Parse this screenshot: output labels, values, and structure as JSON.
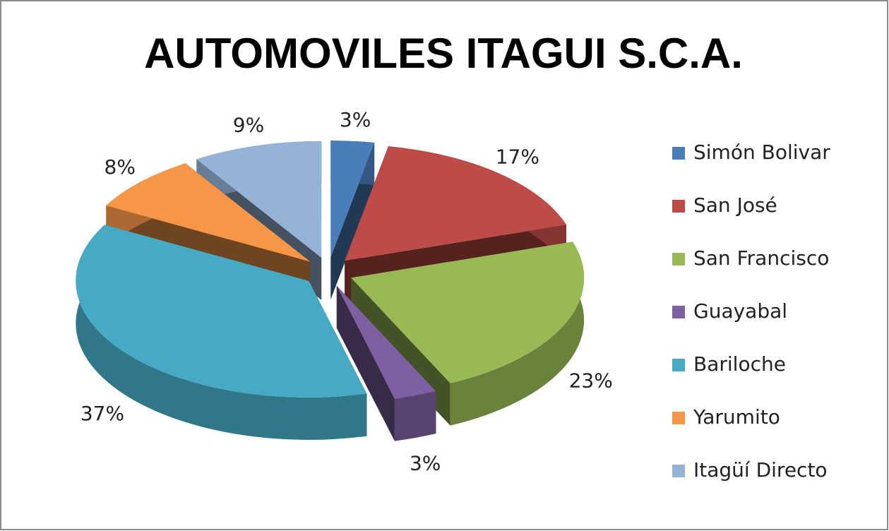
{
  "chart_data": {
    "type": "pie",
    "title": "AUTOMOVILES ITAGUI S.C.A.",
    "categories": [
      "Simón Bolivar",
      "San José",
      "San Francisco",
      "Guayabal",
      "Bariloche",
      "Yarumito",
      "Itagüí Directo"
    ],
    "values": [
      3,
      17,
      23,
      3,
      37,
      8,
      9
    ],
    "value_labels": [
      "3%",
      "17%",
      "23%",
      "3%",
      "37%",
      "8%",
      "9%"
    ],
    "colors": [
      "#4a7ebb",
      "#be4b48",
      "#98b954",
      "#7d60a0",
      "#46aac5",
      "#f79646",
      "#95b3d7"
    ],
    "legend": "right"
  }
}
